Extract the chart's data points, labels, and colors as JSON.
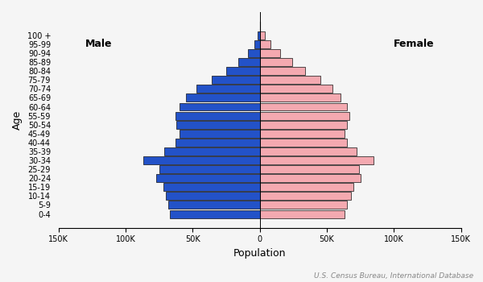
{
  "age_groups": [
    "0-4",
    "5-9",
    "10-14",
    "15-19",
    "20-24",
    "25-29",
    "30-34",
    "35-39",
    "40-44",
    "45-49",
    "50-54",
    "55-59",
    "60-64",
    "65-69",
    "70-74",
    "75-79",
    "80-84",
    "85-89",
    "90-94",
    "95-99",
    "100 +"
  ],
  "male": [
    67000,
    68000,
    70000,
    72000,
    77000,
    75000,
    87000,
    71000,
    63000,
    60000,
    62000,
    63000,
    60000,
    55000,
    47000,
    36000,
    25000,
    16000,
    9000,
    4000,
    1500
  ],
  "female": [
    63000,
    65000,
    68000,
    70000,
    75000,
    74000,
    85000,
    72000,
    65000,
    63000,
    65000,
    67000,
    65000,
    60000,
    54000,
    45000,
    34000,
    24000,
    15000,
    8000,
    4000
  ],
  "male_color": "#2352c8",
  "female_color": "#f4a9b0",
  "male_edgecolor": "#111111",
  "female_edgecolor": "#111111",
  "xlabel": "Population",
  "ylabel": "Age",
  "source": "U.S. Census Bureau, International Database",
  "xlim": 150000,
  "male_label": "Male",
  "female_label": "Female",
  "bar_height": 0.9,
  "background_color": "#f5f5f5"
}
